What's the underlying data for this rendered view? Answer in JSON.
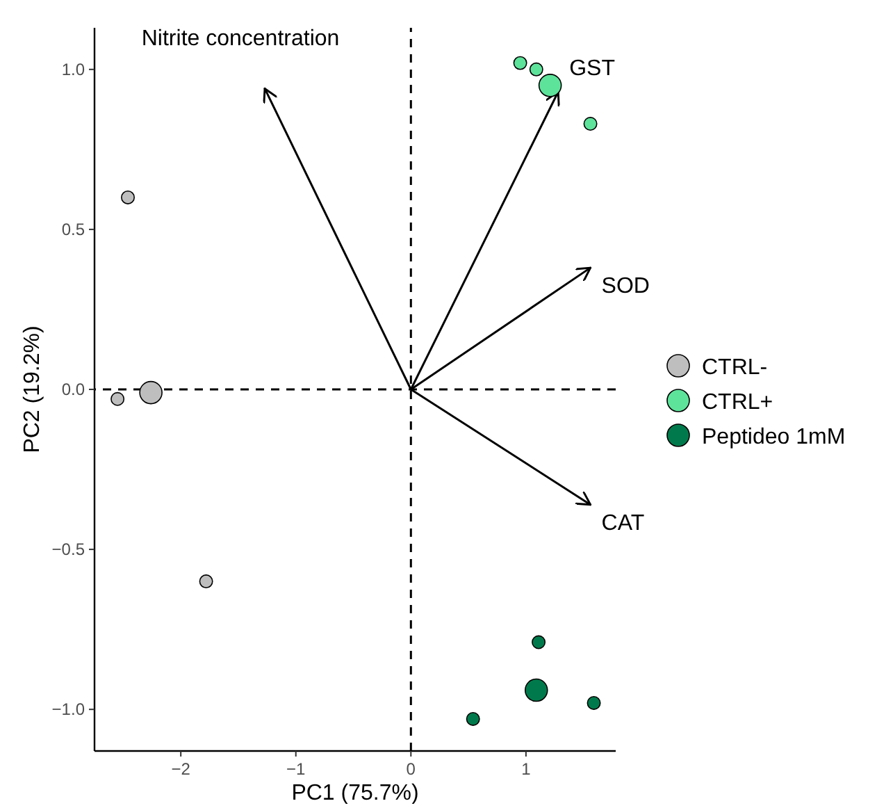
{
  "chart_data": {
    "type": "bubble",
    "xlabel": "PC1 (75.7%)",
    "ylabel": "PC2 (19.2%)",
    "xlim": [
      -2.75,
      1.78
    ],
    "xticks": [
      {
        "value": -2,
        "label": "−2"
      },
      {
        "value": -1,
        "label": "−1"
      },
      0,
      1
    ],
    "ylim": [
      -1.13,
      1.13
    ],
    "yticks": [
      {
        "value": -1,
        "label": "−1.0"
      },
      {
        "value": -0.5,
        "label": "−0.5"
      },
      {
        "value": 0,
        "label": "0.0"
      },
      {
        "value": 0.5,
        "label": "0.5"
      },
      {
        "value": 1,
        "label": "1.0"
      }
    ],
    "grid": false,
    "legend": "right",
    "marker": "circle",
    "ref_lines": [
      {
        "axis": "x",
        "value": 0,
        "line_style": "dashed",
        "color": "#000000"
      },
      {
        "axis": "y",
        "value": 0,
        "line_style": "dashed",
        "color": "#000000"
      }
    ],
    "series": [
      {
        "name": "CTRL-",
        "color": "#bebebe",
        "x": [
          -2.55,
          -2.46,
          -2.26,
          -1.78
        ],
        "values": [
          -0.03,
          0.6,
          -0.01,
          -0.6
        ],
        "sizes": [
          0.33,
          0.33,
          1,
          0.33
        ]
      },
      {
        "name": "CTRL+",
        "color": "#5ee39b",
        "x": [
          0.95,
          1.09,
          1.21,
          1.56
        ],
        "values": [
          1.02,
          1.0,
          0.95,
          0.83
        ],
        "sizes": [
          0.33,
          0.33,
          1,
          0.33
        ]
      },
      {
        "name": "Peptideo 1mM",
        "color": "#007a4c",
        "x": [
          1.11,
          1.09,
          0.54,
          1.59
        ],
        "values": [
          -0.79,
          -0.94,
          -1.03,
          -0.98
        ],
        "sizes": [
          0.33,
          1,
          0.33,
          0.33
        ]
      },
      {
        "type": "line",
        "marker": "none",
        "name": "Nitrite concentration",
        "color": "#000000",
        "x": [
          0,
          -1.27
        ],
        "values": [
          0,
          0.94
        ]
      },
      {
        "type": "line",
        "marker": "none",
        "name": "GST",
        "color": "#000000",
        "x": [
          0,
          1.28
        ],
        "values": [
          0,
          0.93
        ]
      },
      {
        "type": "line",
        "marker": "none",
        "name": "SOD",
        "color": "#000000",
        "x": [
          0,
          1.56
        ],
        "values": [
          0,
          0.38
        ]
      },
      {
        "type": "line",
        "marker": "none",
        "name": "CAT",
        "color": "#000000",
        "x": [
          0,
          1.56
        ],
        "values": [
          0,
          -0.36
        ]
      }
    ]
  }
}
